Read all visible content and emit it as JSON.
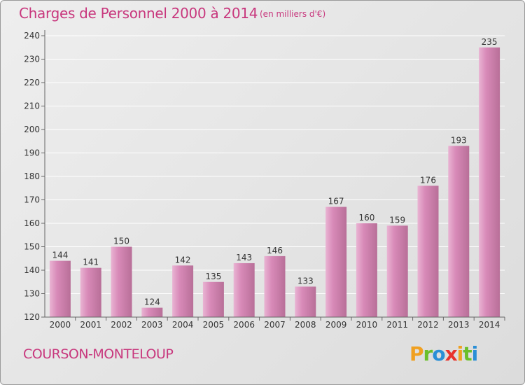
{
  "title": "Charges de Personnel 2000 à 2014",
  "subtitle": "(en milliers d'€)",
  "commune": "COURSON-MONTELOUP",
  "logo": {
    "letters": [
      "P",
      "r",
      "o",
      "x",
      "i",
      "t",
      "i"
    ],
    "colors": [
      "#f0a020",
      "#6bbf2a",
      "#2a8fd6",
      "#e8322c",
      "#f0a020",
      "#6bbf2a",
      "#2a8fd6"
    ]
  },
  "colors": {
    "bar": "#d88ab8",
    "bar_light": "#e9b4d3",
    "bar_dark": "#b86f98",
    "title": "#c8377d"
  },
  "chart_data": {
    "type": "bar",
    "title": "Charges de Personnel 2000 à 2014",
    "subtitle": "(en milliers d'€)",
    "categories": [
      "2000",
      "2001",
      "2002",
      "2003",
      "2004",
      "2005",
      "2006",
      "2007",
      "2008",
      "2009",
      "2010",
      "2011",
      "2012",
      "2013",
      "2014"
    ],
    "values": [
      144,
      141,
      150,
      124,
      142,
      135,
      143,
      146,
      133,
      167,
      160,
      159,
      176,
      193,
      235
    ],
    "ylim": [
      120,
      240
    ],
    "yticks": [
      120,
      130,
      140,
      150,
      160,
      170,
      180,
      190,
      200,
      210,
      220,
      230,
      240
    ],
    "grid": true
  }
}
